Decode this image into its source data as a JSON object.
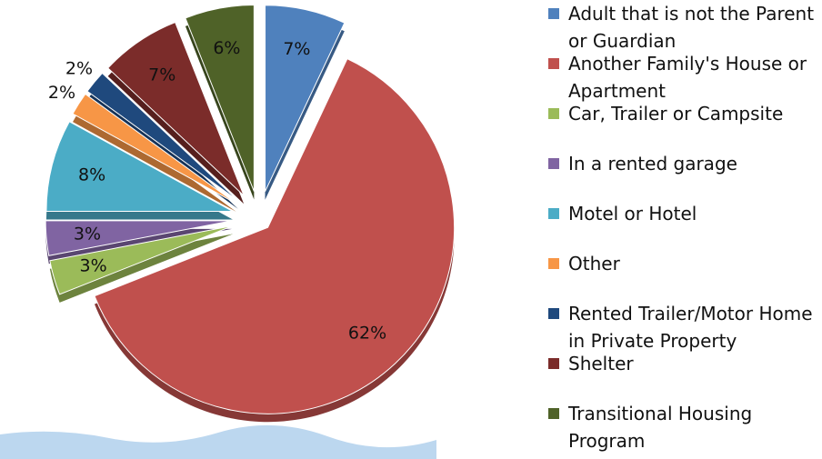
{
  "chart_data": {
    "type": "pie",
    "categories": [
      "Adult that is not the Parent or Guardian",
      "Another Family's House or Apartment",
      "Car, Trailer or Campsite",
      "In a rented garage",
      "Motel or Hotel",
      "Other",
      "Rented Trailer/Motor Home in Private Property",
      "Shelter",
      "Transitional Housing Program"
    ],
    "values": [
      7,
      62,
      3,
      3,
      8,
      2,
      2,
      7,
      6
    ],
    "value_labels": [
      "7%",
      "62%",
      "3%",
      "3%",
      "8%",
      "2%",
      "2%",
      "7%",
      "6%"
    ],
    "colors": [
      "#4f81bd",
      "#c0504d",
      "#9bbb59",
      "#8064a2",
      "#4bacc6",
      "#f79646",
      "#1f497d",
      "#7b2c2a",
      "#4f6228"
    ]
  }
}
